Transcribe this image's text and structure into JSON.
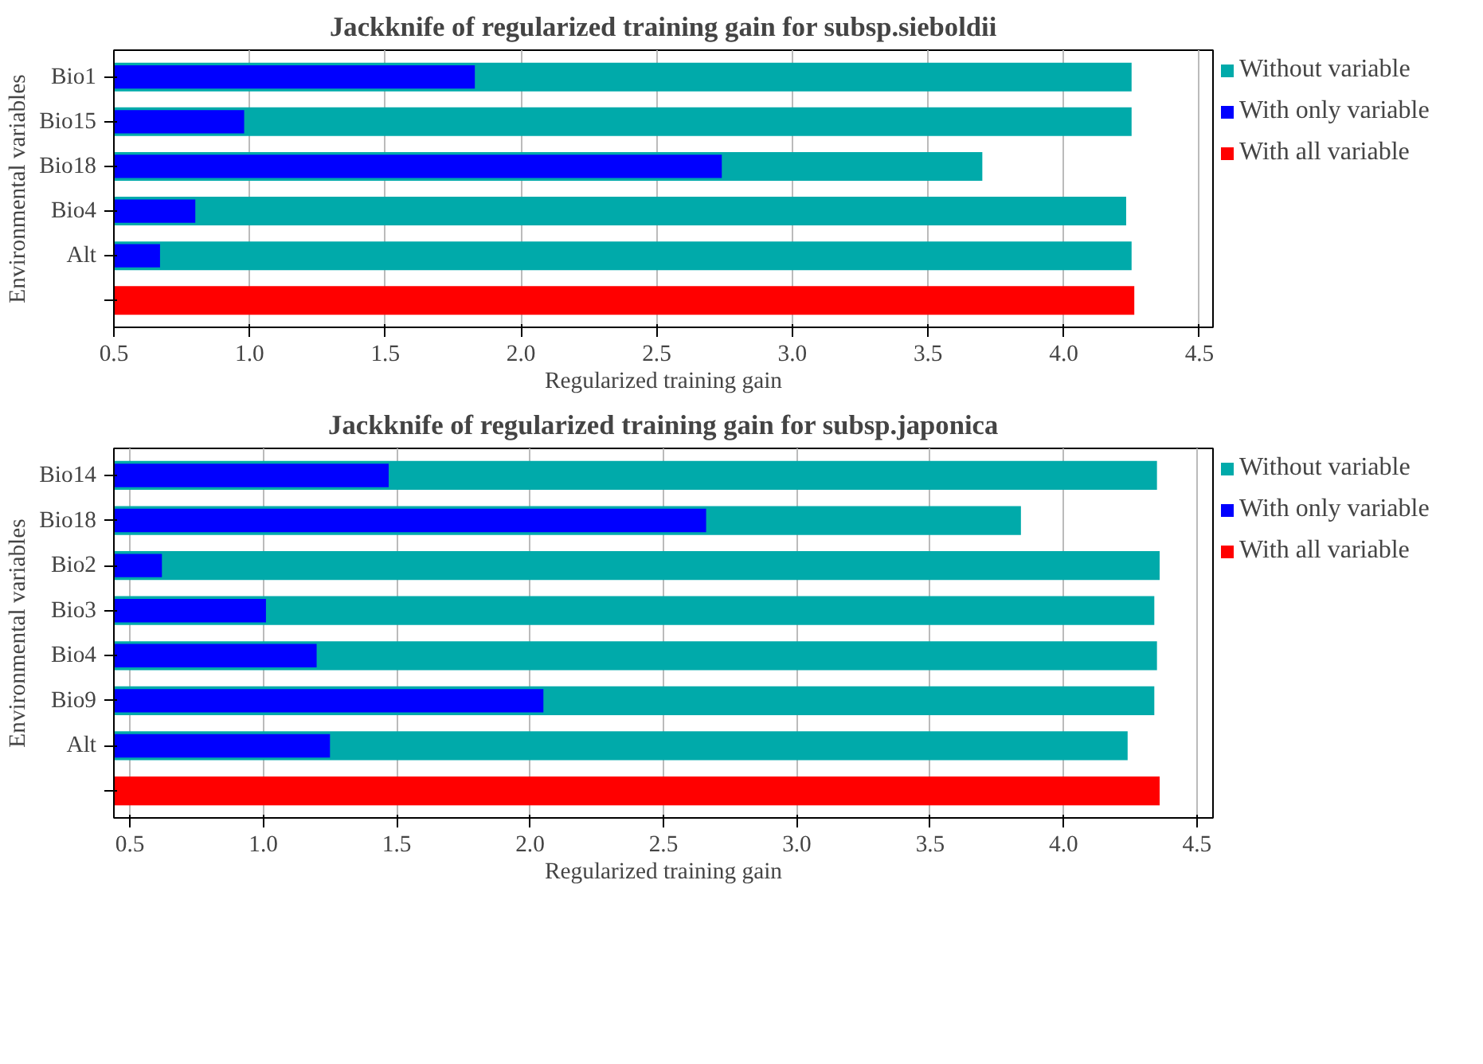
{
  "chart_data": [
    {
      "type": "bar",
      "orientation": "horizontal",
      "title": "Jackknife of regularized training gain for subsp.sieboldii",
      "xlabel": "Regularized training gain",
      "ylabel": "Environmental variables",
      "categories": [
        "Bio1",
        "Bio15",
        "Bio18",
        "Bio4",
        "Alt",
        null
      ],
      "series": [
        {
          "name": "Without variable",
          "color": "#00aaaa",
          "values": [
            4.25,
            4.25,
            3.7,
            4.23,
            4.25,
            null
          ]
        },
        {
          "name": "With only variable",
          "color": "#0000ff",
          "values": [
            1.83,
            0.98,
            2.74,
            0.8,
            0.67,
            null
          ]
        },
        {
          "name": "With all variable",
          "color": "#ff0000",
          "values": [
            null,
            null,
            null,
            null,
            null,
            4.26
          ]
        }
      ],
      "xlim": [
        0.5,
        4.55
      ],
      "xticks": [
        0.5,
        {
          "value": 1,
          "label": "1.0"
        },
        1.5,
        {
          "value": 2,
          "label": "2.0"
        },
        2.5,
        {
          "value": 3,
          "label": "3.0"
        },
        3.5,
        {
          "value": 4,
          "label": "4.0"
        },
        4.5
      ],
      "grid": "x",
      "legend": "right"
    },
    {
      "type": "bar",
      "orientation": "horizontal",
      "title": "Jackknife of regularized training gain for subsp.japonica",
      "xlabel": "Regularized training gain",
      "ylabel": "Environmental variables",
      "categories": [
        "Bio14",
        "Bio18",
        "Bio2",
        "Bio3",
        "Bio4",
        "Bio9",
        "Alt",
        null
      ],
      "series": [
        {
          "name": "Without variable",
          "color": "#00aaaa",
          "values": [
            4.35,
            3.84,
            4.36,
            4.34,
            4.35,
            4.34,
            4.24,
            null
          ]
        },
        {
          "name": "With only variable",
          "color": "#0000ff",
          "values": [
            1.47,
            2.66,
            0.62,
            1.01,
            1.2,
            2.05,
            1.25,
            null
          ]
        },
        {
          "name": "With all variable",
          "color": "#ff0000",
          "values": [
            null,
            null,
            null,
            null,
            null,
            null,
            null,
            4.36
          ]
        }
      ],
      "xlim": [
        0.44,
        4.56
      ],
      "xticks": [
        0.5,
        {
          "value": 1,
          "label": "1.0"
        },
        1.5,
        {
          "value": 2,
          "label": "2.0"
        },
        2.5,
        {
          "value": 3,
          "label": "3.0"
        },
        3.5,
        {
          "value": 4,
          "label": "4.0"
        },
        4.5
      ],
      "grid": "x",
      "legend": "right"
    }
  ]
}
